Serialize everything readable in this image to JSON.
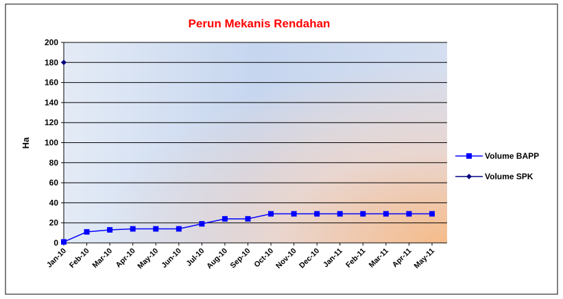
{
  "chart_data": {
    "type": "line",
    "title": "Perun Mekanis Rendahan",
    "y_label": "Ha",
    "categories": [
      "Jan-10",
      "Feb-10",
      "Mar-10",
      "Apr-10",
      "May-10",
      "Jun-10",
      "Jul-10",
      "Aug-10",
      "Sep-10",
      "Oct-10",
      "Nov-10",
      "Dec-10",
      "Jan-11",
      "Feb-11",
      "Mar-11",
      "Apr-11",
      "May-11"
    ],
    "series": [
      {
        "name": "Volume BAPP",
        "color": "#0000ff",
        "marker": "square",
        "values": [
          1,
          11,
          13,
          14,
          14,
          14,
          19,
          24,
          24,
          29,
          29,
          29,
          29,
          29,
          29,
          29,
          29
        ]
      },
      {
        "name": "Volume SPK",
        "color": "#000080",
        "marker": "diamond",
        "values": [
          180,
          null,
          null,
          null,
          null,
          null,
          null,
          null,
          null,
          null,
          null,
          null,
          null,
          null,
          null,
          null,
          null
        ]
      }
    ],
    "ylim": [
      0,
      200
    ],
    "yticks": [
      0,
      20,
      40,
      60,
      80,
      100,
      120,
      140,
      160,
      180,
      200
    ],
    "grid": true,
    "legend": "right"
  }
}
